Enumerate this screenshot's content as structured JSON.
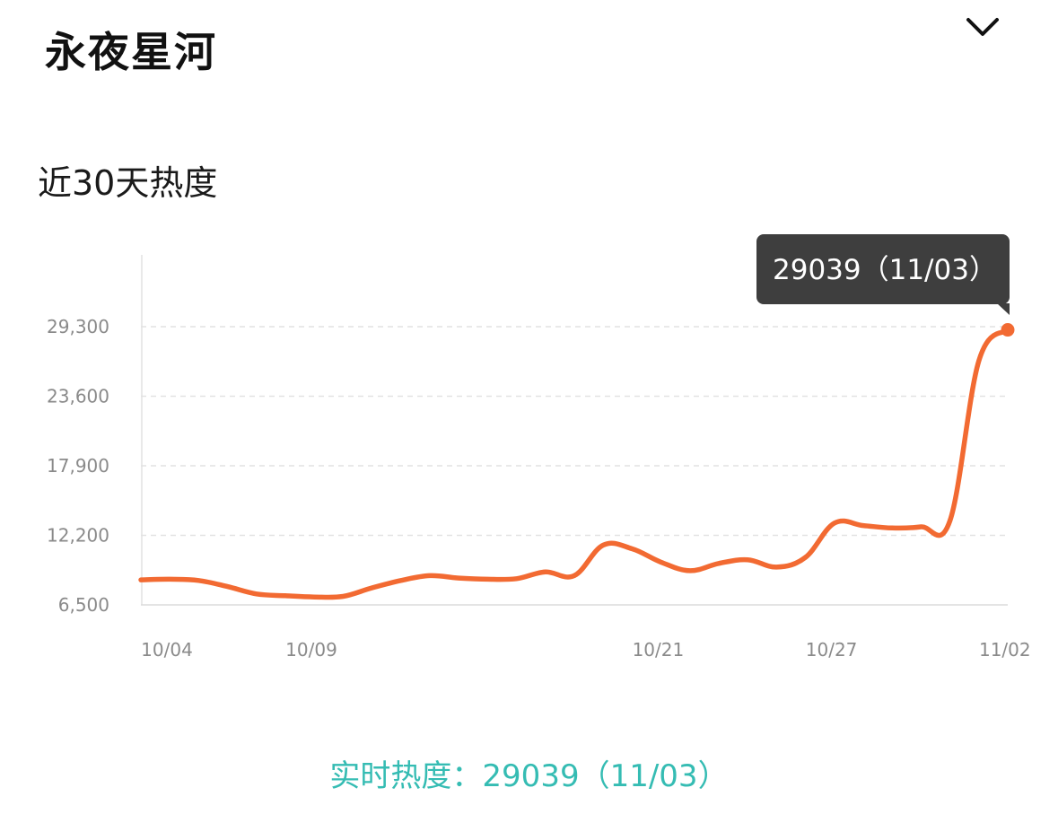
{
  "header": {
    "title": "永夜星河",
    "collapse_icon": "chevron-down-icon"
  },
  "subtitle": "近30天热度",
  "tooltip": {
    "text": "29039（11/03）"
  },
  "footer": {
    "label": "实时热度：",
    "value": "29039（11/03）"
  },
  "colors": {
    "line": "#f26a32",
    "accent_teal": "#35bcb3",
    "tooltip_bg": "#3e3e3e",
    "grid": "#e2e2e2",
    "axis_text": "#8a8a8a"
  },
  "chart_data": {
    "type": "line",
    "title": "",
    "xlabel": "",
    "ylabel": "",
    "x": [
      "10/04",
      "10/05",
      "10/06",
      "10/07",
      "10/08",
      "10/09",
      "10/10",
      "10/11",
      "10/12",
      "10/13",
      "10/14",
      "10/15",
      "10/16",
      "10/17",
      "10/18",
      "10/19",
      "10/20",
      "10/21",
      "10/22",
      "10/23",
      "10/24",
      "10/25",
      "10/26",
      "10/27",
      "10/28",
      "10/29",
      "10/30",
      "10/31",
      "11/01",
      "11/02",
      "11/03"
    ],
    "x_tick_labels": [
      "10/04",
      "10/09",
      "10/21",
      "10/27",
      "11/02"
    ],
    "y_tick_labels": [
      "29,300",
      "23,600",
      "17,900",
      "12,200",
      "6,500"
    ],
    "ylim": [
      6500,
      35000
    ],
    "grid": true,
    "series": [
      {
        "name": "",
        "values": [
          8550,
          8600,
          8500,
          8000,
          7400,
          7250,
          7150,
          7200,
          7900,
          8500,
          8900,
          8700,
          8600,
          8650,
          9200,
          8900,
          11400,
          11100,
          10000,
          9300,
          9900,
          10200,
          9600,
          10400,
          13200,
          13000,
          12800,
          12900,
          13400,
          26500,
          29039
        ]
      }
    ]
  }
}
